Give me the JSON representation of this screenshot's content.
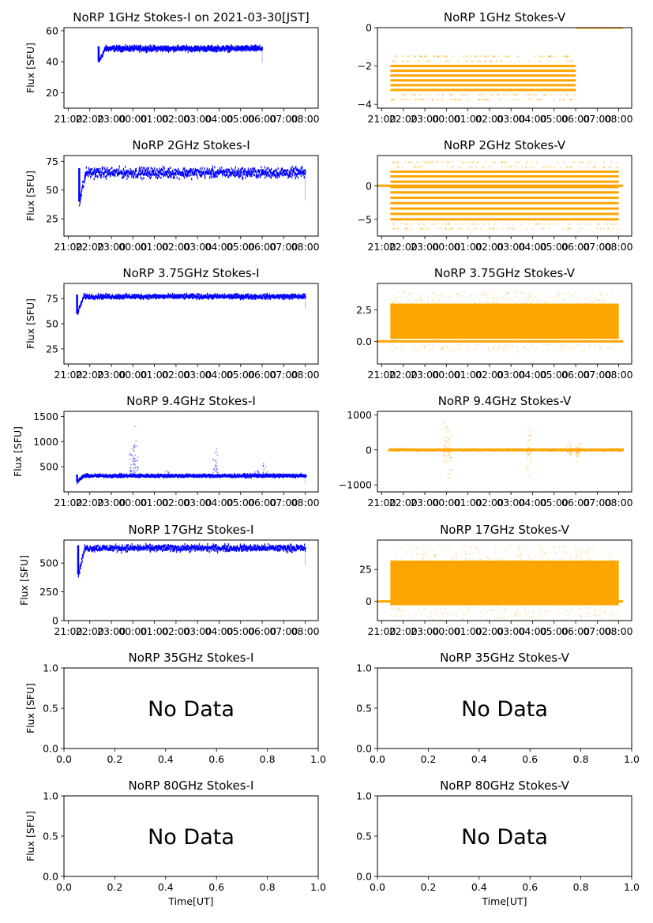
{
  "figure": {
    "date_label": "2021-03-30[JST]"
  },
  "colors": {
    "stokes_i": "#0000ff",
    "stokes_v": "#ffa500"
  },
  "time_ticks": [
    "21:00",
    "22:00",
    "23:00",
    "00:00",
    "01:00",
    "02:00",
    "03:00",
    "04:00",
    "05:00",
    "06:00",
    "07:00",
    "08:00"
  ],
  "chart_data": [
    {
      "id": "1ghz-i",
      "type": "scatter",
      "title": "NoRP 1GHz Stokes-I on 2021-03-30[JST]",
      "ylabel": "Flux [SFU]",
      "xlabel": "",
      "xlim": [
        -0.2,
        11.6
      ],
      "ylim": [
        10,
        62
      ],
      "yticks": [
        20,
        40,
        60
      ],
      "band": {
        "start": 1.4,
        "end": 9.0,
        "level": 48.5,
        "spread": 1.5,
        "startup_from": 40
      },
      "no_data": false
    },
    {
      "id": "1ghz-v",
      "type": "scatter",
      "title": "NoRP 1GHz Stokes-V",
      "ylabel": "",
      "xlabel": "",
      "xlim": [
        -0.2,
        11.6
      ],
      "ylim": [
        -4.2,
        0
      ],
      "yticks": [
        -4,
        -2,
        0
      ],
      "levels": [
        -2.0,
        -2.25,
        -2.5,
        -2.75,
        -3.0,
        -3.25
      ],
      "band": {
        "start": 0.4,
        "end": 9.0
      },
      "zero_segment": {
        "start": 9.0,
        "end": 11.2
      },
      "no_data": false
    },
    {
      "id": "2ghz-i",
      "type": "scatter",
      "title": "NoRP 2GHz Stokes-I",
      "ylabel": "Flux [SFU]",
      "xlabel": "",
      "xlim": [
        -0.2,
        11.6
      ],
      "ylim": [
        10,
        80
      ],
      "yticks": [
        25,
        50,
        75
      ],
      "band": {
        "start": 0.5,
        "end": 11.0,
        "level": 65,
        "spread": 4,
        "startup_from": 40
      },
      "no_data": false
    },
    {
      "id": "2ghz-v",
      "type": "scatter",
      "title": "NoRP 2GHz Stokes-V",
      "ylabel": "",
      "xlabel": "",
      "xlim": [
        -0.2,
        11.6
      ],
      "ylim": [
        -7.5,
        4.5
      ],
      "yticks": [
        -5,
        0
      ],
      "levels": [
        2.1,
        1.4,
        0.6,
        -0.2,
        -1.0,
        -1.8,
        -2.6,
        -3.4,
        -4.2,
        -5.0
      ],
      "band": {
        "start": 0.4,
        "end": 11.0
      },
      "zero_segment": {
        "start": -0.3,
        "end": 11.2
      },
      "no_data": false
    },
    {
      "id": "3.75ghz-i",
      "type": "scatter",
      "title": "NoRP 3.75GHz Stokes-I",
      "ylabel": "Flux [SFU]",
      "xlabel": "",
      "xlim": [
        -0.2,
        11.6
      ],
      "ylim": [
        10,
        90
      ],
      "yticks": [
        25,
        50,
        75
      ],
      "band": {
        "start": 0.4,
        "end": 11.0,
        "level": 77,
        "spread": 2,
        "startup_from": 60
      },
      "no_data": false
    },
    {
      "id": "3.75ghz-v",
      "type": "scatter",
      "title": "NoRP 3.75GHz Stokes-V",
      "ylabel": "",
      "xlabel": "",
      "xlim": [
        -0.2,
        11.6
      ],
      "ylim": [
        -1.8,
        4.6
      ],
      "yticks": [
        0.0,
        2.5
      ],
      "band": {
        "start": 0.4,
        "end": 11.0,
        "low": 0.2,
        "high": 3.0
      },
      "zero_segment": {
        "start": -0.3,
        "end": 11.2
      },
      "no_data": false
    },
    {
      "id": "9.4ghz-i",
      "type": "scatter",
      "title": "NoRP 9.4GHz Stokes-I",
      "ylabel": "Flux [SFU]",
      "xlabel": "",
      "xlim": [
        -0.2,
        11.6
      ],
      "ylim": [
        0,
        1600
      ],
      "yticks": [
        500,
        1000,
        1500
      ],
      "band": {
        "start": 0.4,
        "end": 11.0,
        "level": 320,
        "spread": 25,
        "startup_from": 200
      },
      "bursts": [
        {
          "t": 2.95,
          "peak": 1200
        },
        {
          "t": 3.1,
          "peak": 1480
        },
        {
          "t": 4.6,
          "peak": 450
        },
        {
          "t": 6.8,
          "peak": 1050
        },
        {
          "t": 8.7,
          "peak": 480
        },
        {
          "t": 9.1,
          "peak": 650
        },
        {
          "t": 10.9,
          "peak": 400
        }
      ],
      "no_data": false
    },
    {
      "id": "9.4ghz-v",
      "type": "scatter",
      "title": "NoRP 9.4GHz Stokes-V",
      "ylabel": "",
      "xlabel": "",
      "xlim": [
        -0.2,
        11.6
      ],
      "ylim": [
        -1200,
        1100
      ],
      "yticks": [
        -1000,
        0,
        1000
      ],
      "band": {
        "start": 0.3,
        "end": 11.2,
        "level": 0,
        "spread": 15
      },
      "bursts": [
        {
          "t": 2.95,
          "peak": 1100
        },
        {
          "t": 3.1,
          "peak": 1000
        },
        {
          "t": 6.8,
          "peak": 950
        },
        {
          "t": 8.7,
          "peak": 250
        },
        {
          "t": 9.1,
          "peak": 400
        }
      ],
      "no_data": false
    },
    {
      "id": "17ghz-i",
      "type": "scatter",
      "title": "NoRP 17GHz Stokes-I",
      "ylabel": "Flux [SFU]",
      "xlabel": "",
      "xlim": [
        -0.2,
        11.6
      ],
      "ylim": [
        0,
        700
      ],
      "yticks": [
        0,
        250,
        500
      ],
      "band": {
        "start": 0.45,
        "end": 11.0,
        "level": 630,
        "spread": 25,
        "startup_from": 400
      },
      "no_data": false
    },
    {
      "id": "17ghz-v",
      "type": "scatter",
      "title": "NoRP 17GHz Stokes-V",
      "ylabel": "",
      "xlabel": "",
      "xlim": [
        -0.2,
        11.6
      ],
      "ylim": [
        -15,
        48
      ],
      "yticks": [
        0,
        25
      ],
      "band": {
        "start": 0.4,
        "end": 11.0,
        "low": -3,
        "high": 32
      },
      "zero_segment": {
        "start": -0.3,
        "end": 11.2
      },
      "no_data": false
    },
    {
      "id": "35ghz-i",
      "type": "empty",
      "title": "NoRP 35GHz Stokes-I",
      "ylabel": "Flux [SFU]",
      "xlabel": "",
      "xlim": [
        0,
        1
      ],
      "ylim": [
        0,
        1
      ],
      "xticks": [
        "0.0",
        "0.2",
        "0.4",
        "0.6",
        "0.8",
        "1.0"
      ],
      "yticks": [
        "0.0",
        "0.5",
        "1.0"
      ],
      "no_data": true,
      "annotation": "No Data"
    },
    {
      "id": "35ghz-v",
      "type": "empty",
      "title": "NoRP 35GHz Stokes-V",
      "ylabel": "",
      "xlabel": "",
      "xlim": [
        0,
        1
      ],
      "ylim": [
        0,
        1
      ],
      "xticks": [
        "0.0",
        "0.2",
        "0.4",
        "0.6",
        "0.8",
        "1.0"
      ],
      "yticks": [
        "0.0",
        "0.5",
        "1.0"
      ],
      "no_data": true,
      "annotation": "No Data"
    },
    {
      "id": "80ghz-i",
      "type": "empty",
      "title": "NoRP 80GHz Stokes-I",
      "ylabel": "Flux [SFU]",
      "xlabel": "Time[UT]",
      "xlim": [
        0,
        1
      ],
      "ylim": [
        0,
        1
      ],
      "xticks": [
        "0.0",
        "0.2",
        "0.4",
        "0.6",
        "0.8",
        "1.0"
      ],
      "yticks": [
        "0.0",
        "0.5",
        "1.0"
      ],
      "no_data": true,
      "annotation": "No Data"
    },
    {
      "id": "80ghz-v",
      "type": "empty",
      "title": "NoRP 80GHz Stokes-V",
      "ylabel": "",
      "xlabel": "Time[UT]",
      "xlim": [
        0,
        1
      ],
      "ylim": [
        0,
        1
      ],
      "xticks": [
        "0.0",
        "0.2",
        "0.4",
        "0.6",
        "0.8",
        "1.0"
      ],
      "yticks": [
        "0.0",
        "0.5",
        "1.0"
      ],
      "no_data": true,
      "annotation": "No Data"
    }
  ]
}
